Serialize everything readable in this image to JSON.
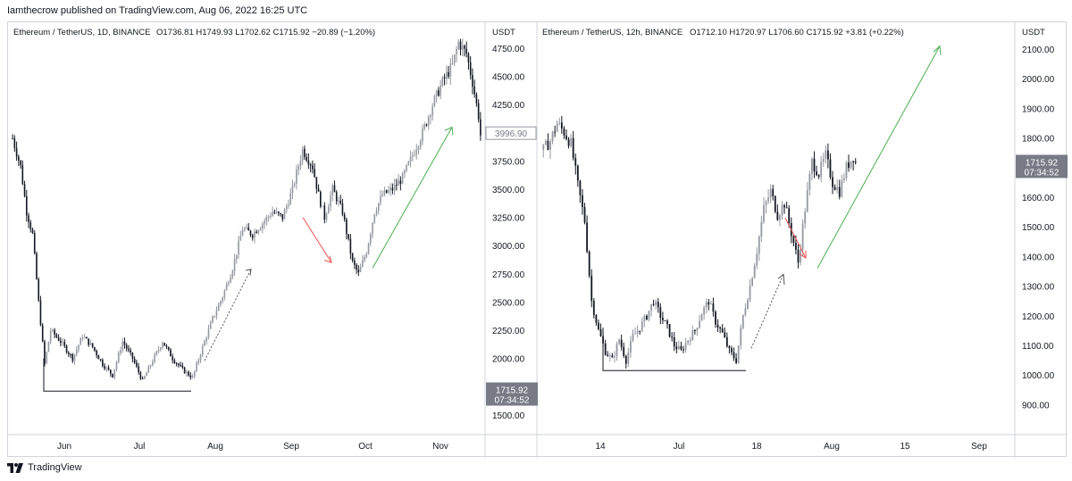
{
  "header": {
    "published_by": "Iamthecrow published on TradingView.com, Aug 06, 2022 16:25 UTC"
  },
  "footer": {
    "brand": "TradingView"
  },
  "colors": {
    "up": "#9598a1",
    "down": "#131722",
    "grid": "#e0e3eb",
    "green_arrow": "#4caf50",
    "red_arrow": "#ef5350",
    "dotted": "#555555",
    "price_tag": "#787b86"
  },
  "chart_data": [
    {
      "type": "candlestick",
      "title": "Ethereum / TetherUS, 1D, BINANCE",
      "ohlc_label": {
        "o": "O1736.81",
        "h": "H1749.93",
        "l": "L1702.62",
        "c": "C1715.92",
        "chg": "−20.89 (−1.20%)"
      },
      "currency": "USDT",
      "ylim": [
        1380,
        4900
      ],
      "y_ticks": [
        "4750.00",
        "4500.00",
        "4250.00",
        "3750.00",
        "3500.00",
        "3250.00",
        "3000.00",
        "2750.00",
        "2500.00",
        "2250.00",
        "2000.00",
        "1750.00",
        "1500.00"
      ],
      "y_tick_values": [
        4750,
        4500,
        4250,
        3750,
        3500,
        3250,
        3000,
        2750,
        2500,
        2250,
        2000,
        1750,
        1500
      ],
      "x_ticks": [
        "Jun",
        "Jul",
        "Aug",
        "Sep",
        "Oct",
        "Nov"
      ],
      "price_box": "3996.90",
      "last_price": "1715.92",
      "countdown": "07:34:52",
      "anchors": [
        [
          0,
          3950
        ],
        [
          4,
          3700
        ],
        [
          7,
          3300
        ],
        [
          10,
          3100
        ],
        [
          13,
          2500
        ],
        [
          16,
          1950
        ],
        [
          19,
          2250
        ],
        [
          24,
          2150
        ],
        [
          30,
          2000
        ],
        [
          35,
          2200
        ],
        [
          40,
          2100
        ],
        [
          45,
          1950
        ],
        [
          50,
          1850
        ],
        [
          55,
          2150
        ],
        [
          60,
          2000
        ],
        [
          65,
          1800
        ],
        [
          70,
          1980
        ],
        [
          75,
          2150
        ],
        [
          80,
          2000
        ],
        [
          85,
          1900
        ],
        [
          90,
          1830
        ],
        [
          95,
          2100
        ],
        [
          100,
          2350
        ],
        [
          105,
          2550
        ],
        [
          110,
          2800
        ],
        [
          115,
          3150
        ],
        [
          120,
          3100
        ],
        [
          125,
          3200
        ],
        [
          130,
          3300
        ],
        [
          135,
          3250
        ],
        [
          140,
          3500
        ],
        [
          145,
          3850
        ],
        [
          150,
          3700
        ],
        [
          153,
          3450
        ],
        [
          156,
          3250
        ],
        [
          160,
          3500
        ],
        [
          165,
          3300
        ],
        [
          170,
          2850
        ],
        [
          173,
          2750
        ],
        [
          177,
          2950
        ],
        [
          181,
          3300
        ],
        [
          185,
          3450
        ],
        [
          190,
          3500
        ],
        [
          195,
          3600
        ],
        [
          200,
          3800
        ],
        [
          205,
          4000
        ],
        [
          210,
          4250
        ],
        [
          215,
          4450
        ],
        [
          220,
          4600
        ],
        [
          223,
          4800
        ],
        [
          227,
          4700
        ],
        [
          230,
          4450
        ],
        [
          233,
          4150
        ],
        [
          234,
          3980
        ]
      ]
    },
    {
      "type": "candlestick",
      "title": "Ethereum / TetherUS, 12h, BINANCE",
      "ohlc_label": {
        "o": "O1712.10",
        "h": "H1720.97",
        "l": "L1706.60",
        "c": "C1715.92",
        "chg": "+3.81 (+0.22%)"
      },
      "currency": "USDT",
      "ylim": [
        820,
        2160
      ],
      "y_ticks": [
        "2100.00",
        "2000.00",
        "1900.00",
        "1800.00",
        "1700.00",
        "1600.00",
        "1500.00",
        "1400.00",
        "1300.00",
        "1200.00",
        "1100.00",
        "1000.00",
        "900.00"
      ],
      "y_tick_values": [
        2100,
        2000,
        1900,
        1800,
        1700,
        1600,
        1500,
        1400,
        1300,
        1200,
        1100,
        1000,
        900
      ],
      "x_ticks": [
        "14",
        "Jul",
        "18",
        "Aug",
        "15",
        "Sep"
      ],
      "last_price": "1715.92",
      "countdown": "07:34:52",
      "anchors": [
        [
          0,
          1760
        ],
        [
          3,
          1790
        ],
        [
          6,
          1850
        ],
        [
          9,
          1820
        ],
        [
          12,
          1780
        ],
        [
          15,
          1640
        ],
        [
          18,
          1520
        ],
        [
          21,
          1250
        ],
        [
          24,
          1150
        ],
        [
          27,
          1080
        ],
        [
          30,
          1050
        ],
        [
          33,
          1120
        ],
        [
          36,
          1050
        ],
        [
          39,
          1130
        ],
        [
          42,
          1160
        ],
        [
          45,
          1200
        ],
        [
          48,
          1250
        ],
        [
          51,
          1200
        ],
        [
          54,
          1160
        ],
        [
          57,
          1100
        ],
        [
          60,
          1080
        ],
        [
          63,
          1120
        ],
        [
          66,
          1150
        ],
        [
          69,
          1210
        ],
        [
          72,
          1250
        ],
        [
          75,
          1180
        ],
        [
          78,
          1140
        ],
        [
          81,
          1080
        ],
        [
          84,
          1050
        ],
        [
          87,
          1200
        ],
        [
          90,
          1300
        ],
        [
          93,
          1420
        ],
        [
          96,
          1560
        ],
        [
          99,
          1620
        ],
        [
          102,
          1540
        ],
        [
          105,
          1580
        ],
        [
          108,
          1480
        ],
        [
          111,
          1380
        ],
        [
          114,
          1560
        ],
        [
          117,
          1720
        ],
        [
          120,
          1680
        ],
        [
          123,
          1740
        ],
        [
          126,
          1650
        ],
        [
          129,
          1620
        ],
        [
          132,
          1700
        ],
        [
          135,
          1740
        ],
        [
          136,
          1716
        ]
      ]
    }
  ]
}
